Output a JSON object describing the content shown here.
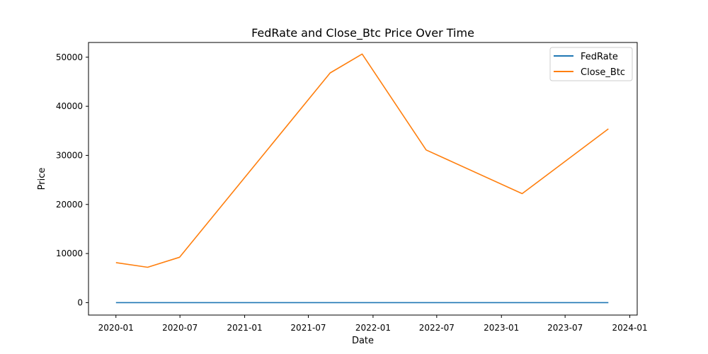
{
  "chart_data": {
    "type": "line",
    "title": "FedRate and Close_Btc Price Over Time",
    "xlabel": "Date",
    "ylabel": "Price",
    "x_ticks": [
      "2020-01",
      "2020-07",
      "2021-01",
      "2021-07",
      "2022-01",
      "2022-07",
      "2023-01",
      "2023-07",
      "2024-01"
    ],
    "y_ticks": [
      "0",
      "10000",
      "20000",
      "30000",
      "40000",
      "50000"
    ],
    "xlim": [
      "2019-10-15",
      "2024-01-22"
    ],
    "ylim": [
      -2535,
      53000
    ],
    "grid": false,
    "legend_position": "top-right",
    "series": [
      {
        "name": "FedRate",
        "color": "#1f77b4",
        "x": [
          "2020-01-01",
          "2020-03-31",
          "2020-06-30",
          "2020-09-30",
          "2020-12-31",
          "2021-03-31",
          "2021-06-30",
          "2021-09-01",
          "2021-12-01",
          "2022-03-01",
          "2022-06-01",
          "2022-09-01",
          "2022-12-01",
          "2023-03-01",
          "2023-06-01",
          "2023-09-01",
          "2023-11-01"
        ],
        "values": [
          1.55,
          0.65,
          0.08,
          0.09,
          0.09,
          0.07,
          0.08,
          0.08,
          0.08,
          0.2,
          1.21,
          2.56,
          4.1,
          4.65,
          5.08,
          5.33,
          5.33
        ]
      },
      {
        "name": "Close_Btc",
        "color": "#ff7f0e",
        "x": [
          "2020-01-01",
          "2020-03-31",
          "2020-06-30",
          "2021-09-01",
          "2021-12-01",
          "2022-06-01",
          "2023-03-01",
          "2023-11-01"
        ],
        "values": [
          8150,
          7200,
          9250,
          46800,
          50650,
          31100,
          22200,
          35400
        ]
      }
    ]
  }
}
